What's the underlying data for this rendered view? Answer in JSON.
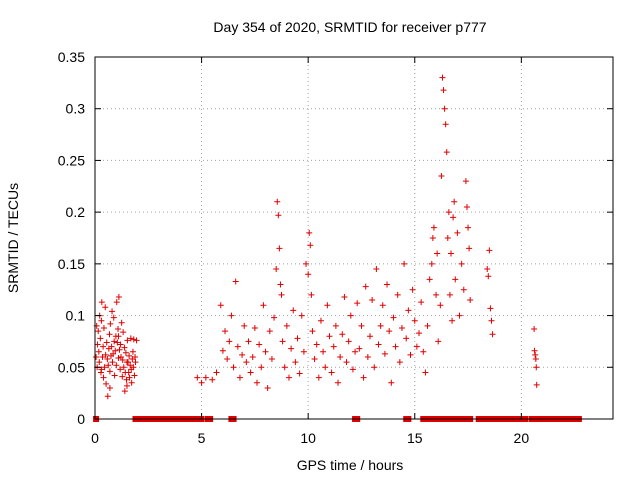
{
  "chart_data": {
    "type": "scatter",
    "title": "Day 354 of 2020, SRMTID for receiver p777",
    "xlabel": "GPS time / hours",
    "ylabel": "SRMTID / TECUs",
    "xlim": [
      0,
      24.3
    ],
    "ylim": [
      0,
      0.35
    ],
    "xticks": [
      0,
      5,
      10,
      15,
      20
    ],
    "xtick_labels": [
      "0",
      "5",
      "10",
      "15",
      "20"
    ],
    "yticks": [
      0,
      0.05,
      0.1,
      0.15,
      0.2,
      0.25,
      0.3,
      0.35
    ],
    "ytick_labels": [
      "0",
      "0.05",
      "0.1",
      "0.15",
      "0.2",
      "0.25",
      "0.3",
      "0.35"
    ],
    "grid": true,
    "marker_color": "#e00000",
    "series": [
      {
        "name": "SRMTID",
        "marker": "plus",
        "points": [
          [
            0.05,
            0.06
          ],
          [
            0.08,
            0.09
          ],
          [
            0.1,
            0.05
          ],
          [
            0.12,
            0.072
          ],
          [
            0.15,
            0.085
          ],
          [
            0.18,
            0.065
          ],
          [
            0.2,
            0.055
          ],
          [
            0.22,
            0.1
          ],
          [
            0.25,
            0.078
          ],
          [
            0.28,
            0.045
          ],
          [
            0.3,
            0.095
          ],
          [
            0.32,
            0.113
          ],
          [
            0.35,
            0.06
          ],
          [
            0.38,
            0.07
          ],
          [
            0.4,
            0.04
          ],
          [
            0.42,
            0.088
          ],
          [
            0.45,
            0.05
          ],
          [
            0.48,
            0.108
          ],
          [
            0.5,
            0.062
          ],
          [
            0.52,
            0.034
          ],
          [
            0.55,
            0.074
          ],
          [
            0.58,
            0.058
          ],
          [
            0.6,
            0.022
          ],
          [
            0.62,
            0.052
          ],
          [
            0.65,
            0.068
          ],
          [
            0.68,
            0.082
          ],
          [
            0.7,
            0.046
          ],
          [
            0.72,
            0.092
          ],
          [
            0.75,
            0.061
          ],
          [
            0.78,
            0.07
          ],
          [
            0.8,
            0.104
          ],
          [
            0.82,
            0.055
          ],
          [
            0.85,
            0.063
          ],
          [
            0.88,
            0.098
          ],
          [
            0.9,
            0.075
          ],
          [
            0.92,
            0.042
          ],
          [
            0.95,
            0.066
          ],
          [
            0.98,
            0.08
          ],
          [
            1.0,
            0.052
          ],
          [
            1.02,
            0.113
          ],
          [
            1.05,
            0.074
          ],
          [
            1.08,
            0.087
          ],
          [
            1.1,
            0.059
          ],
          [
            1.12,
            0.118
          ],
          [
            1.15,
            0.067
          ],
          [
            1.18,
            0.048
          ],
          [
            1.2,
            0.072
          ],
          [
            1.22,
            0.06
          ],
          [
            1.25,
            0.093
          ],
          [
            1.28,
            0.041
          ],
          [
            1.3,
            0.057
          ],
          [
            1.32,
            0.084
          ],
          [
            1.35,
            0.05
          ],
          [
            1.38,
            0.069
          ],
          [
            1.4,
            0.027
          ],
          [
            1.42,
            0.045
          ],
          [
            1.45,
            0.064
          ],
          [
            1.48,
            0.038
          ],
          [
            1.5,
            0.032
          ],
          [
            1.52,
            0.076
          ],
          [
            1.55,
            0.055
          ],
          [
            1.58,
            0.045
          ],
          [
            1.6,
            0.061
          ],
          [
            1.62,
            0.04
          ],
          [
            1.65,
            0.052
          ],
          [
            1.68,
            0.078
          ],
          [
            1.7,
            0.048
          ],
          [
            1.72,
            0.035
          ],
          [
            1.75,
            0.058
          ],
          [
            1.78,
            0.065
          ],
          [
            1.8,
            0.05
          ],
          [
            1.82,
            0.077
          ],
          [
            1.85,
            0.042
          ],
          [
            1.88,
            0.06
          ],
          [
            1.9,
            0.055
          ],
          [
            1.95,
            0.076
          ],
          [
            0.3,
            0.048
          ],
          [
            0.7,
            0.03
          ],
          [
            1.1,
            0.08
          ],
          [
            1.5,
            0.055
          ],
          [
            4.8,
            0.04
          ],
          [
            5.0,
            0.035
          ],
          [
            5.2,
            0.04
          ],
          [
            5.5,
            0.038
          ],
          [
            5.7,
            0.045
          ],
          [
            5.9,
            0.11
          ],
          [
            6.0,
            0.066
          ],
          [
            6.1,
            0.085
          ],
          [
            6.2,
            0.058
          ],
          [
            6.3,
            0.075
          ],
          [
            6.4,
            0.1
          ],
          [
            6.5,
            0.05
          ],
          [
            6.6,
            0.133
          ],
          [
            6.7,
            0.07
          ],
          [
            6.8,
            0.04
          ],
          [
            6.9,
            0.062
          ],
          [
            7.0,
            0.09
          ],
          [
            7.1,
            0.055
          ],
          [
            7.2,
            0.075
          ],
          [
            7.3,
            0.045
          ],
          [
            7.4,
            0.06
          ],
          [
            7.5,
            0.088
          ],
          [
            7.6,
            0.035
          ],
          [
            7.7,
            0.072
          ],
          [
            7.8,
            0.05
          ],
          [
            7.9,
            0.11
          ],
          [
            8.0,
            0.065
          ],
          [
            8.1,
            0.03
          ],
          [
            8.2,
            0.085
          ],
          [
            8.3,
            0.058
          ],
          [
            8.4,
            0.098
          ],
          [
            8.5,
            0.145
          ],
          [
            8.55,
            0.21
          ],
          [
            8.6,
            0.197
          ],
          [
            8.65,
            0.165
          ],
          [
            8.7,
            0.13
          ],
          [
            8.75,
            0.12
          ],
          [
            8.8,
            0.075
          ],
          [
            8.9,
            0.05
          ],
          [
            9.0,
            0.09
          ],
          [
            9.1,
            0.04
          ],
          [
            9.2,
            0.068
          ],
          [
            9.3,
            0.105
          ],
          [
            9.4,
            0.055
          ],
          [
            9.5,
            0.078
          ],
          [
            9.6,
            0.044
          ],
          [
            9.7,
            0.1
          ],
          [
            9.8,
            0.065
          ],
          [
            9.9,
            0.15
          ],
          [
            10.0,
            0.14
          ],
          [
            10.05,
            0.18
          ],
          [
            10.1,
            0.168
          ],
          [
            10.15,
            0.12
          ],
          [
            10.2,
            0.085
          ],
          [
            10.3,
            0.058
          ],
          [
            10.4,
            0.072
          ],
          [
            10.5,
            0.04
          ],
          [
            10.6,
            0.095
          ],
          [
            10.7,
            0.065
          ],
          [
            10.8,
            0.05
          ],
          [
            10.9,
            0.11
          ],
          [
            11.0,
            0.08
          ],
          [
            11.1,
            0.045
          ],
          [
            11.2,
            0.07
          ],
          [
            11.3,
            0.09
          ],
          [
            11.4,
            0.035
          ],
          [
            11.5,
            0.06
          ],
          [
            11.6,
            0.082
          ],
          [
            11.7,
            0.118
          ],
          [
            11.8,
            0.055
          ],
          [
            11.9,
            0.075
          ],
          [
            12.0,
            0.1
          ],
          [
            12.1,
            0.048
          ],
          [
            12.2,
            0.065
          ],
          [
            12.3,
            0.112
          ],
          [
            12.4,
            0.068
          ],
          [
            12.5,
            0.09
          ],
          [
            12.6,
            0.04
          ],
          [
            12.7,
            0.128
          ],
          [
            12.8,
            0.06
          ],
          [
            12.9,
            0.08
          ],
          [
            13.0,
            0.115
          ],
          [
            13.1,
            0.05
          ],
          [
            13.2,
            0.145
          ],
          [
            13.3,
            0.072
          ],
          [
            13.4,
            0.09
          ],
          [
            13.5,
            0.11
          ],
          [
            13.6,
            0.063
          ],
          [
            13.7,
            0.13
          ],
          [
            13.8,
            0.085
          ],
          [
            13.9,
            0.035
          ],
          [
            14.0,
            0.098
          ],
          [
            14.1,
            0.07
          ],
          [
            14.2,
            0.12
          ],
          [
            14.3,
            0.055
          ],
          [
            14.4,
            0.088
          ],
          [
            14.5,
            0.15
          ],
          [
            14.6,
            0.078
          ],
          [
            14.7,
            0.105
          ],
          [
            14.8,
            0.062
          ],
          [
            14.9,
            0.125
          ],
          [
            15.0,
            0.095
          ],
          [
            15.1,
            0.07
          ],
          [
            15.2,
            0.083
          ],
          [
            15.3,
            0.113
          ],
          [
            15.4,
            0.065
          ],
          [
            15.5,
            0.045
          ],
          [
            15.6,
            0.09
          ],
          [
            15.7,
            0.135
          ],
          [
            15.8,
            0.15
          ],
          [
            15.85,
            0.175
          ],
          [
            15.9,
            0.185
          ],
          [
            16.0,
            0.12
          ],
          [
            16.05,
            0.16
          ],
          [
            16.1,
            0.075
          ],
          [
            16.2,
            0.11
          ],
          [
            16.25,
            0.235
          ],
          [
            16.3,
            0.33
          ],
          [
            16.35,
            0.318
          ],
          [
            16.4,
            0.3
          ],
          [
            16.45,
            0.285
          ],
          [
            16.5,
            0.258
          ],
          [
            16.55,
            0.175
          ],
          [
            16.6,
            0.2
          ],
          [
            16.65,
            0.12
          ],
          [
            16.7,
            0.16
          ],
          [
            16.75,
            0.095
          ],
          [
            16.8,
            0.195
          ],
          [
            16.85,
            0.21
          ],
          [
            16.9,
            0.135
          ],
          [
            17.0,
            0.18
          ],
          [
            17.1,
            0.1
          ],
          [
            17.2,
            0.15
          ],
          [
            17.3,
            0.125
          ],
          [
            17.4,
            0.23
          ],
          [
            17.45,
            0.205
          ],
          [
            17.5,
            0.185
          ],
          [
            17.55,
            0.165
          ],
          [
            17.6,
            0.115
          ],
          [
            18.4,
            0.145
          ],
          [
            18.45,
            0.138
          ],
          [
            18.5,
            0.163
          ],
          [
            18.55,
            0.107
          ],
          [
            18.6,
            0.095
          ],
          [
            18.65,
            0.082
          ],
          [
            20.6,
            0.087
          ],
          [
            20.62,
            0.066
          ],
          [
            20.65,
            0.062
          ],
          [
            20.68,
            0.058
          ],
          [
            20.7,
            0.05
          ],
          [
            20.72,
            0.033
          ]
        ]
      }
    ],
    "zero_series": {
      "name": "zero values",
      "marker": "square",
      "value": 0,
      "ranges": [
        [
          0.05,
          0.1
        ],
        [
          1.9,
          5.0
        ],
        [
          5.3,
          5.4
        ],
        [
          6.4,
          6.5
        ],
        [
          12.2,
          12.3
        ],
        [
          14.6,
          14.7
        ],
        [
          15.4,
          17.6
        ],
        [
          18.0,
          20.2
        ],
        [
          20.5,
          22.7
        ]
      ]
    }
  }
}
